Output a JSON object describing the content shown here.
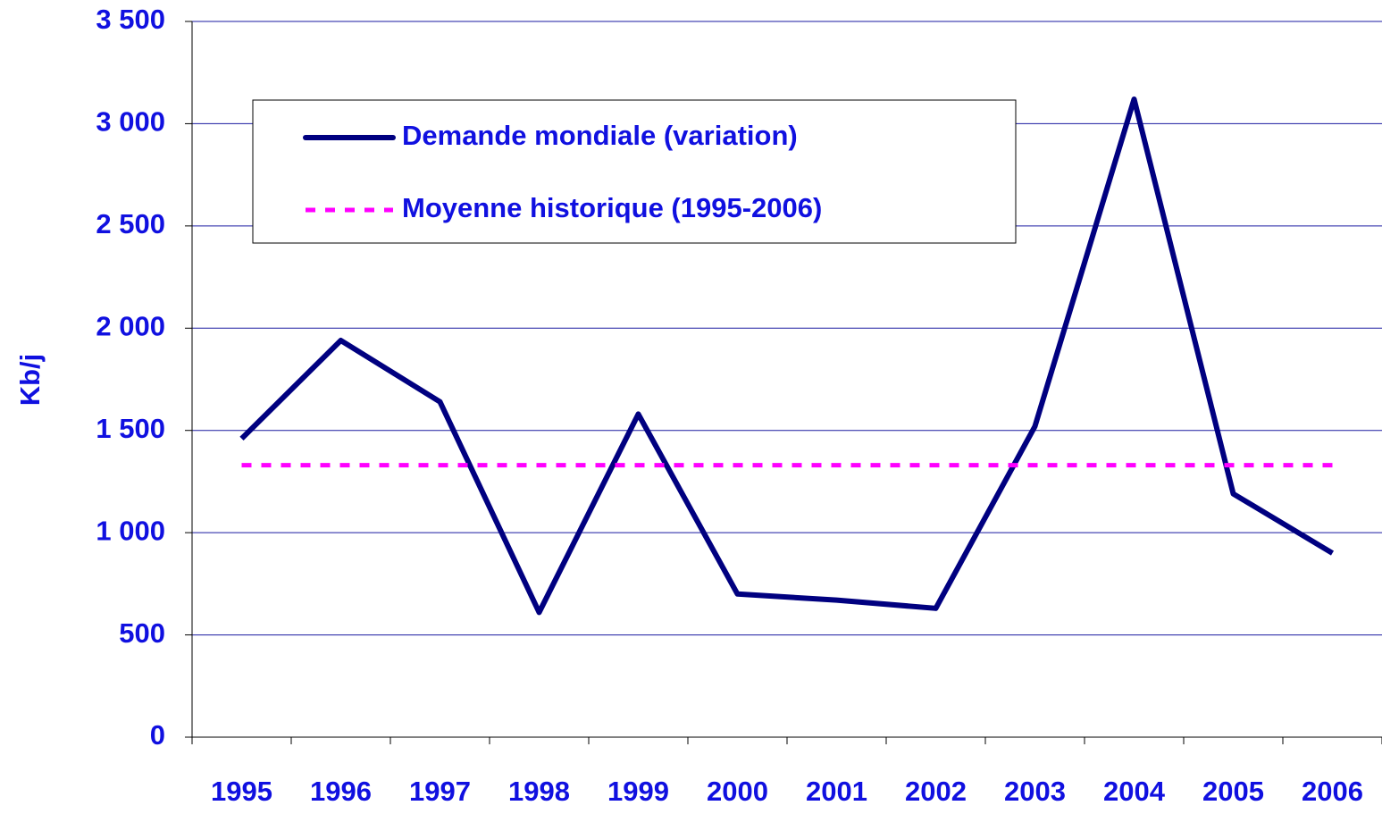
{
  "chart_data": {
    "type": "line",
    "y_label": "Kb/j",
    "categories": [
      "1995",
      "1996",
      "1997",
      "1998",
      "1999",
      "2000",
      "2001",
      "2002",
      "2003",
      "2004",
      "2005",
      "2006"
    ],
    "series": [
      {
        "name": "Demande mondiale (variation)",
        "color": "#000080",
        "style": "solid",
        "values": [
          1460,
          1940,
          1640,
          610,
          1580,
          700,
          670,
          630,
          1520,
          3120,
          1190,
          900
        ]
      },
      {
        "name": "Moyenne historique (1995-2006)",
        "color": "#ff00ff",
        "style": "dashed",
        "values": [
          1330,
          1330,
          1330,
          1330,
          1330,
          1330,
          1330,
          1330,
          1330,
          1330,
          1330,
          1330
        ]
      }
    ],
    "ylim": [
      0,
      3500
    ],
    "yticks": [
      0,
      500,
      {
        "value": 1000,
        "label": "1 000"
      },
      {
        "value": 1500,
        "label": "1 500"
      },
      {
        "value": 2000,
        "label": "2 000"
      },
      {
        "value": 2500,
        "label": "2 500"
      },
      {
        "value": 3000,
        "label": "3 000"
      },
      {
        "value": 3500,
        "label": "3 500"
      }
    ],
    "grid": true
  }
}
